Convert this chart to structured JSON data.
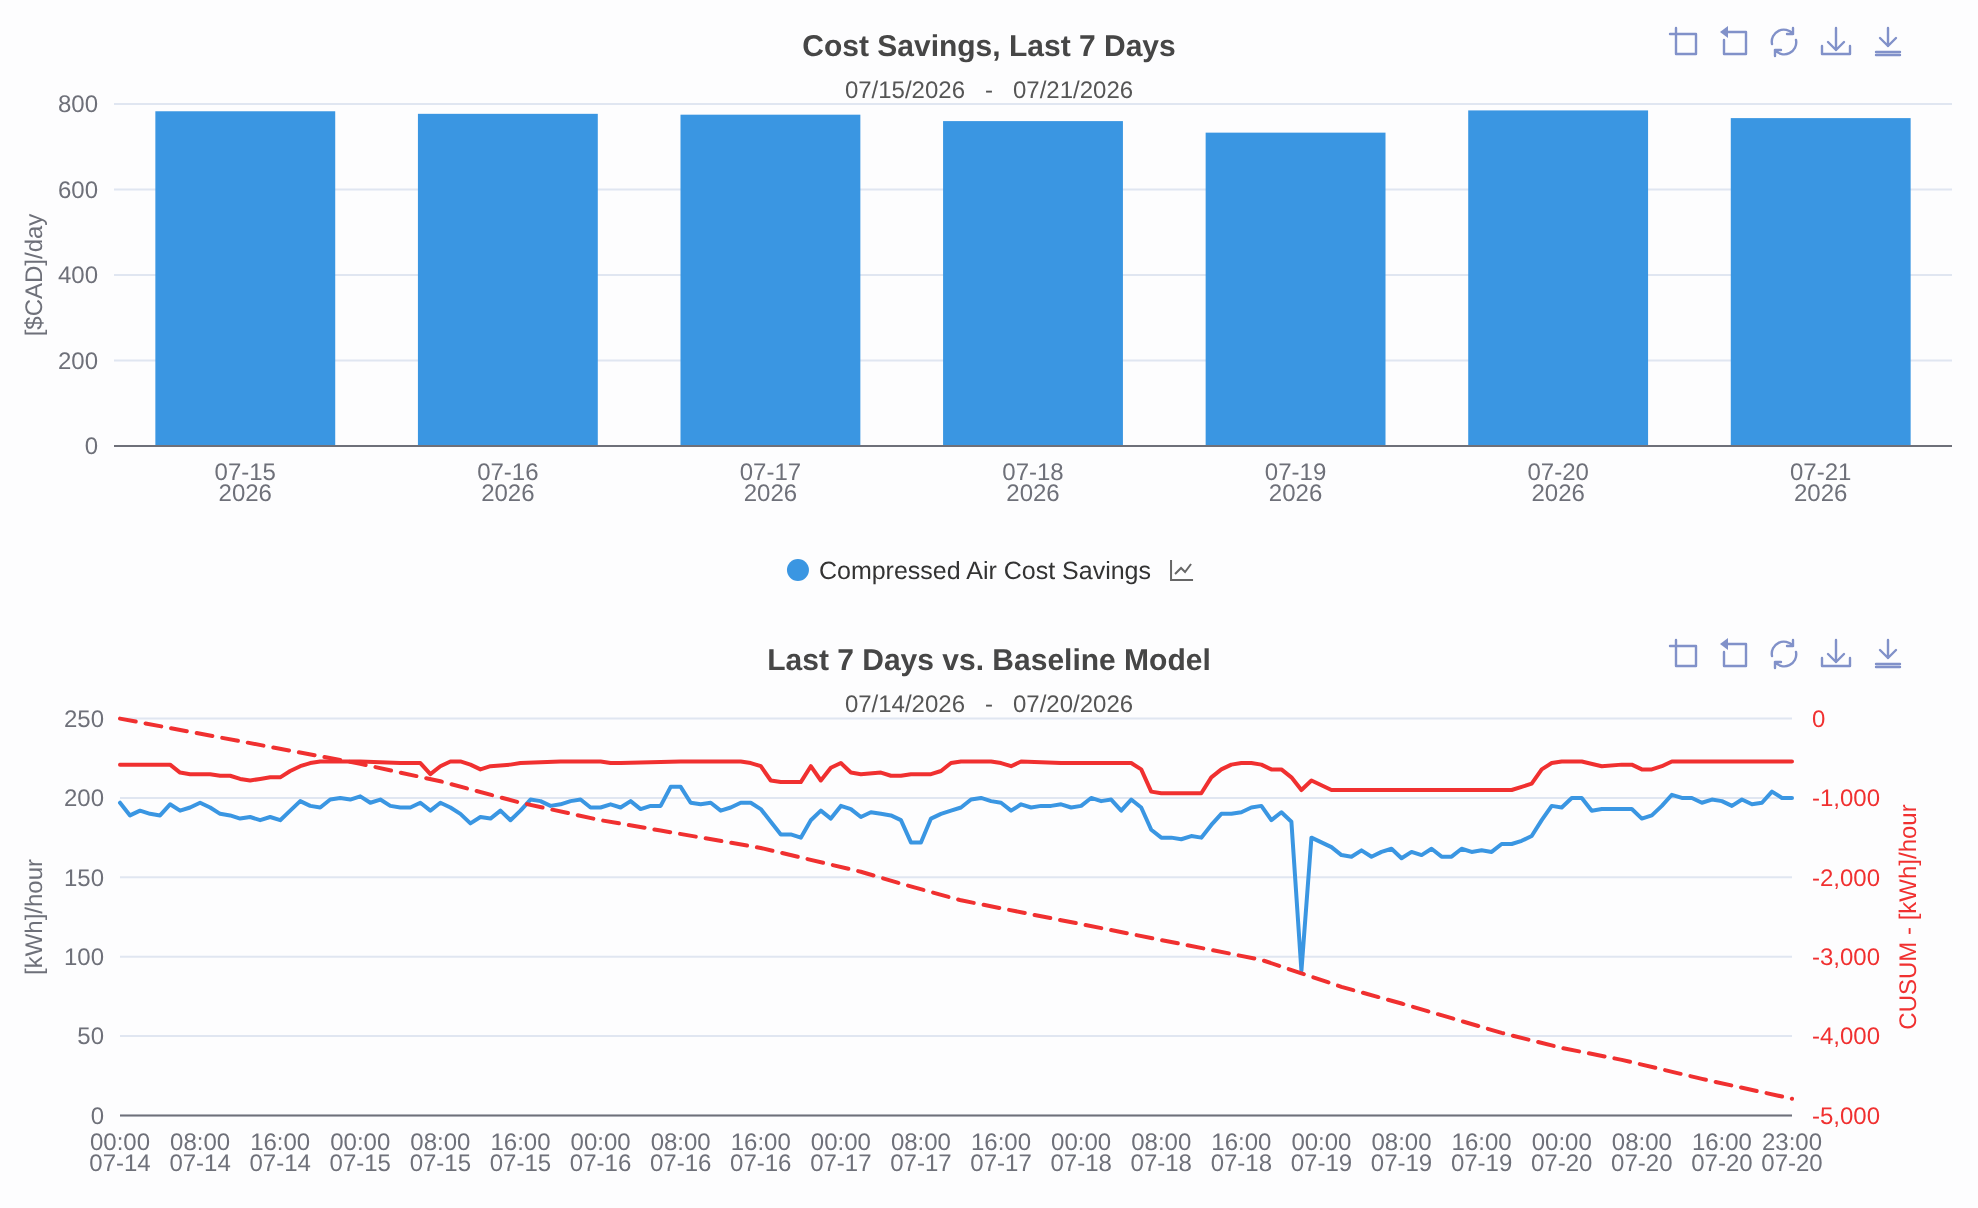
{
  "chart_data": [
    {
      "type": "bar",
      "title": "Cost Savings, Last 7 Days",
      "subtitle": "07/15/2026   -   07/21/2026",
      "categories": [
        "07-15\n2026",
        "07-16\n2026",
        "07-17\n2026",
        "07-18\n2026",
        "07-19\n2026",
        "07-20\n2026",
        "07-21\n2026"
      ],
      "ylabel": "[$CAD]/day",
      "series": [
        {
          "name": "Compressed Air Cost Savings",
          "color": "#3a96e2",
          "values": [
            783,
            777,
            775,
            760,
            733,
            785,
            767
          ]
        }
      ],
      "ylim": [
        0,
        800
      ],
      "yticks": [
        0,
        200,
        400,
        600,
        800
      ],
      "grid": "y",
      "legend": "bottom"
    },
    {
      "type": "line",
      "title": "Last 7 Days vs. Baseline Model",
      "subtitle": "07/14/2026   -   07/20/2026",
      "ylabel": "[kWh]/hour",
      "y2label": "CUSUM - [kWh]/hour",
      "x": [
        "2026-07-14T00:00",
        "2026-07-14T01:00",
        "2026-07-14T02:00",
        "2026-07-14T03:00",
        "2026-07-14T04:00",
        "2026-07-14T05:00",
        "2026-07-14T06:00",
        "2026-07-14T07:00",
        "2026-07-14T08:00",
        "2026-07-14T09:00",
        "2026-07-14T10:00",
        "2026-07-14T11:00",
        "2026-07-14T12:00",
        "2026-07-14T13:00",
        "2026-07-14T14:00",
        "2026-07-14T15:00",
        "2026-07-14T16:00",
        "2026-07-14T17:00",
        "2026-07-14T18:00",
        "2026-07-14T19:00",
        "2026-07-14T20:00",
        "2026-07-14T21:00",
        "2026-07-14T22:00",
        "2026-07-14T23:00",
        "2026-07-15T00:00",
        "2026-07-15T01:00",
        "2026-07-15T02:00",
        "2026-07-15T03:00",
        "2026-07-15T04:00",
        "2026-07-15T05:00",
        "2026-07-15T06:00",
        "2026-07-15T07:00",
        "2026-07-15T08:00",
        "2026-07-15T09:00",
        "2026-07-15T10:00",
        "2026-07-15T11:00",
        "2026-07-15T12:00",
        "2026-07-15T13:00",
        "2026-07-15T14:00",
        "2026-07-15T15:00",
        "2026-07-15T16:00",
        "2026-07-15T17:00",
        "2026-07-15T18:00",
        "2026-07-15T19:00",
        "2026-07-15T20:00",
        "2026-07-15T21:00",
        "2026-07-15T22:00",
        "2026-07-15T23:00",
        "2026-07-16T00:00",
        "2026-07-16T01:00",
        "2026-07-16T02:00",
        "2026-07-16T03:00",
        "2026-07-16T04:00",
        "2026-07-16T05:00",
        "2026-07-16T06:00",
        "2026-07-16T07:00",
        "2026-07-16T08:00",
        "2026-07-16T09:00",
        "2026-07-16T10:00",
        "2026-07-16T11:00",
        "2026-07-16T12:00",
        "2026-07-16T13:00",
        "2026-07-16T14:00",
        "2026-07-16T15:00",
        "2026-07-16T16:00",
        "2026-07-16T17:00",
        "2026-07-16T18:00",
        "2026-07-16T19:00",
        "2026-07-16T20:00",
        "2026-07-16T21:00",
        "2026-07-16T22:00",
        "2026-07-16T23:00",
        "2026-07-17T00:00",
        "2026-07-17T01:00",
        "2026-07-17T02:00",
        "2026-07-17T03:00",
        "2026-07-17T04:00",
        "2026-07-17T05:00",
        "2026-07-17T06:00",
        "2026-07-17T07:00",
        "2026-07-17T08:00",
        "2026-07-17T09:00",
        "2026-07-17T10:00",
        "2026-07-17T11:00",
        "2026-07-17T12:00",
        "2026-07-17T13:00",
        "2026-07-17T14:00",
        "2026-07-17T15:00",
        "2026-07-17T16:00",
        "2026-07-17T17:00",
        "2026-07-17T18:00",
        "2026-07-17T19:00",
        "2026-07-17T20:00",
        "2026-07-17T21:00",
        "2026-07-17T22:00",
        "2026-07-17T23:00",
        "2026-07-18T00:00",
        "2026-07-18T01:00",
        "2026-07-18T02:00",
        "2026-07-18T03:00",
        "2026-07-18T04:00",
        "2026-07-18T05:00",
        "2026-07-18T06:00",
        "2026-07-18T07:00",
        "2026-07-18T08:00",
        "2026-07-18T09:00",
        "2026-07-18T10:00",
        "2026-07-18T11:00",
        "2026-07-18T12:00",
        "2026-07-18T13:00",
        "2026-07-18T14:00",
        "2026-07-18T15:00",
        "2026-07-18T16:00",
        "2026-07-18T17:00",
        "2026-07-18T18:00",
        "2026-07-18T19:00",
        "2026-07-18T20:00",
        "2026-07-18T21:00",
        "2026-07-18T22:00",
        "2026-07-18T23:00",
        "2026-07-19T00:00",
        "2026-07-19T01:00",
        "2026-07-19T02:00",
        "2026-07-19T03:00",
        "2026-07-19T04:00",
        "2026-07-19T05:00",
        "2026-07-19T06:00",
        "2026-07-19T07:00",
        "2026-07-19T08:00",
        "2026-07-19T09:00",
        "2026-07-19T10:00",
        "2026-07-19T11:00",
        "2026-07-19T12:00",
        "2026-07-19T13:00",
        "2026-07-19T14:00",
        "2026-07-19T15:00",
        "2026-07-19T16:00",
        "2026-07-19T17:00",
        "2026-07-19T18:00",
        "2026-07-19T19:00",
        "2026-07-19T20:00",
        "2026-07-19T21:00",
        "2026-07-19T22:00",
        "2026-07-19T23:00",
        "2026-07-20T00:00",
        "2026-07-20T01:00",
        "2026-07-20T02:00",
        "2026-07-20T03:00",
        "2026-07-20T04:00",
        "2026-07-20T05:00",
        "2026-07-20T06:00",
        "2026-07-20T07:00",
        "2026-07-20T08:00",
        "2026-07-20T09:00",
        "2026-07-20T10:00",
        "2026-07-20T11:00",
        "2026-07-20T12:00",
        "2026-07-20T13:00",
        "2026-07-20T14:00",
        "2026-07-20T15:00",
        "2026-07-20T16:00",
        "2026-07-20T17:00",
        "2026-07-20T18:00",
        "2026-07-20T19:00",
        "2026-07-20T20:00",
        "2026-07-20T21:00",
        "2026-07-20T22:00",
        "2026-07-20T23:00"
      ],
      "xlim": [
        "2026-07-14T00:00",
        "2026-07-20T23:00"
      ],
      "xticks": [
        {
          "value": "2026-07-14T00:00",
          "label": "00:00\n07-14"
        },
        {
          "value": "2026-07-14T08:00",
          "label": "08:00\n07-14"
        },
        {
          "value": "2026-07-14T16:00",
          "label": "16:00\n07-14"
        },
        {
          "value": "2026-07-15T00:00",
          "label": "00:00\n07-15"
        },
        {
          "value": "2026-07-15T08:00",
          "label": "08:00\n07-15"
        },
        {
          "value": "2026-07-15T16:00",
          "label": "16:00\n07-15"
        },
        {
          "value": "2026-07-16T00:00",
          "label": "00:00\n07-16"
        },
        {
          "value": "2026-07-16T08:00",
          "label": "08:00\n07-16"
        },
        {
          "value": "2026-07-16T16:00",
          "label": "16:00\n07-16"
        },
        {
          "value": "2026-07-17T00:00",
          "label": "00:00\n07-17"
        },
        {
          "value": "2026-07-17T08:00",
          "label": "08:00\n07-17"
        },
        {
          "value": "2026-07-17T16:00",
          "label": "16:00\n07-17"
        },
        {
          "value": "2026-07-18T00:00",
          "label": "00:00\n07-18"
        },
        {
          "value": "2026-07-18T08:00",
          "label": "08:00\n07-18"
        },
        {
          "value": "2026-07-18T16:00",
          "label": "16:00\n07-18"
        },
        {
          "value": "2026-07-19T00:00",
          "label": "00:00\n07-19"
        },
        {
          "value": "2026-07-19T08:00",
          "label": "08:00\n07-19"
        },
        {
          "value": "2026-07-19T16:00",
          "label": "16:00\n07-19"
        },
        {
          "value": "2026-07-20T00:00",
          "label": "00:00\n07-20"
        },
        {
          "value": "2026-07-20T08:00",
          "label": "08:00\n07-20"
        },
        {
          "value": "2026-07-20T16:00",
          "label": "16:00\n07-20"
        },
        {
          "value": "2026-07-20T23:00",
          "label": "23:00\n07-20"
        }
      ],
      "ylim": [
        0,
        250
      ],
      "yticks": [
        0,
        50,
        100,
        150,
        200,
        250
      ],
      "y2lim": [
        -5000,
        0
      ],
      "y2ticks": [
        {
          "value": -5000,
          "label": "-5,000"
        },
        {
          "value": -4000,
          "label": "-4,000"
        },
        {
          "value": -3000,
          "label": "-3,000"
        },
        {
          "value": -2000,
          "label": "-2,000"
        },
        {
          "value": -1000,
          "label": "-1,000"
        },
        0
      ],
      "grid": "y",
      "series": [
        {
          "color": "#3a96e2",
          "values": [
            197,
            189,
            192,
            190,
            189,
            196,
            192,
            194,
            197,
            194,
            190,
            189,
            187,
            188,
            186,
            188,
            186,
            192,
            198,
            195,
            194,
            199,
            200,
            199,
            201,
            197,
            199,
            195,
            194,
            194,
            197,
            192,
            197,
            194,
            190,
            184,
            188,
            187,
            192,
            186,
            192,
            199,
            198,
            195,
            196,
            198,
            199,
            194,
            194,
            196,
            194,
            198,
            193,
            195,
            195,
            207,
            207,
            197,
            196,
            197,
            192,
            194,
            197,
            197,
            193,
            185,
            177,
            177,
            175,
            186,
            192,
            187,
            195,
            193,
            188,
            191,
            190,
            189,
            186,
            172,
            172,
            187,
            190,
            192,
            194,
            199,
            200,
            198,
            197,
            192,
            196,
            194,
            195,
            195,
            196,
            194,
            195,
            200,
            198,
            199,
            192,
            199,
            194,
            180,
            175,
            175,
            174,
            176,
            175,
            183,
            190,
            190,
            191,
            194,
            195,
            186,
            191,
            185,
            91,
            175,
            172,
            169,
            164,
            163,
            167,
            163,
            166,
            168,
            162,
            166,
            164,
            168,
            163,
            163,
            168,
            166,
            167,
            166,
            171,
            171,
            173,
            176,
            186,
            195,
            194,
            200,
            200,
            192,
            193,
            193,
            193,
            193,
            187,
            189,
            195,
            202,
            200,
            200,
            197,
            199,
            198,
            195,
            199,
            196,
            197,
            204,
            200,
            200
          ]
        },
        {
          "color": "#f03030",
          "x": [
            "2026-07-14T00:00",
            "2026-07-14T05:00",
            "2026-07-14T06:00",
            "2026-07-14T07:00",
            "2026-07-14T09:00",
            "2026-07-14T10:00",
            "2026-07-14T11:00",
            "2026-07-14T12:00",
            "2026-07-14T13:00",
            "2026-07-14T14:00",
            "2026-07-14T15:00",
            "2026-07-14T16:00",
            "2026-07-14T17:00",
            "2026-07-14T18:00",
            "2026-07-14T19:00",
            "2026-07-14T20:00",
            "2026-07-15T00:00",
            "2026-07-15T04:00",
            "2026-07-15T06:00",
            "2026-07-15T07:00",
            "2026-07-15T08:00",
            "2026-07-15T09:00",
            "2026-07-15T10:00",
            "2026-07-15T11:00",
            "2026-07-15T12:00",
            "2026-07-15T13:00",
            "2026-07-15T15:00",
            "2026-07-15T16:00",
            "2026-07-15T20:00",
            "2026-07-16T00:00",
            "2026-07-16T01:00",
            "2026-07-16T02:00",
            "2026-07-16T08:00",
            "2026-07-16T14:00",
            "2026-07-16T15:00",
            "2026-07-16T16:00",
            "2026-07-16T17:00",
            "2026-07-16T18:00",
            "2026-07-16T20:00",
            "2026-07-16T21:00",
            "2026-07-16T22:00",
            "2026-07-16T23:00",
            "2026-07-17T00:00",
            "2026-07-17T01:00",
            "2026-07-17T02:00",
            "2026-07-17T04:00",
            "2026-07-17T05:00",
            "2026-07-17T06:00",
            "2026-07-17T07:00",
            "2026-07-17T09:00",
            "2026-07-17T10:00",
            "2026-07-17T11:00",
            "2026-07-17T12:00",
            "2026-07-17T15:00",
            "2026-07-17T16:00",
            "2026-07-17T17:00",
            "2026-07-17T18:00",
            "2026-07-17T22:00",
            "2026-07-18T02:00",
            "2026-07-18T04:00",
            "2026-07-18T05:00",
            "2026-07-18T06:00",
            "2026-07-18T07:00",
            "2026-07-18T08:00",
            "2026-07-18T12:00",
            "2026-07-18T13:00",
            "2026-07-18T14:00",
            "2026-07-18T15:00",
            "2026-07-18T16:00",
            "2026-07-18T17:00",
            "2026-07-18T18:00",
            "2026-07-18T19:00",
            "2026-07-18T20:00",
            "2026-07-18T21:00",
            "2026-07-18T22:00",
            "2026-07-18T23:00",
            "2026-07-19T00:00",
            "2026-07-19T01:00",
            "2026-07-19T19:00",
            "2026-07-19T20:00",
            "2026-07-19T21:00",
            "2026-07-19T22:00",
            "2026-07-19T23:00",
            "2026-07-20T00:00",
            "2026-07-20T02:00",
            "2026-07-20T04:00",
            "2026-07-20T06:00",
            "2026-07-20T07:00",
            "2026-07-20T08:00",
            "2026-07-20T09:00",
            "2026-07-20T10:00",
            "2026-07-20T11:00",
            "2026-07-20T14:00",
            "2026-07-20T23:00"
          ],
          "values": [
            221,
            221,
            216,
            215,
            215,
            214,
            214,
            212,
            211,
            212,
            213,
            213,
            217,
            220,
            222,
            223,
            223,
            222,
            222,
            215,
            220,
            223,
            223,
            221,
            218,
            220,
            221,
            222,
            223,
            223,
            222,
            222,
            223,
            223,
            222,
            220,
            211,
            210,
            210,
            220,
            211,
            219,
            222,
            216,
            215,
            216,
            214,
            214,
            215,
            215,
            217,
            222,
            223,
            223,
            222,
            220,
            223,
            222,
            222,
            222,
            222,
            218,
            204,
            203,
            203,
            213,
            218,
            221,
            222,
            222,
            221,
            218,
            218,
            213,
            205,
            211,
            208,
            205,
            205,
            207,
            209,
            218,
            222,
            223,
            223,
            220,
            221,
            221,
            218,
            218,
            220,
            223,
            223,
            223
          ]
        },
        {
          "color": "#f03030",
          "axis": "y2",
          "line_style": "dashed",
          "x": [
            "2026-07-14T00:00",
            "2026-07-15T00:00",
            "2026-07-15T08:00",
            "2026-07-15T16:00",
            "2026-07-16T00:00",
            "2026-07-16T06:00",
            "2026-07-16T16:00",
            "2026-07-17T02:00",
            "2026-07-17T06:00",
            "2026-07-17T12:00",
            "2026-07-17T22:00",
            "2026-07-18T08:00",
            "2026-07-18T18:00",
            "2026-07-18T22:00",
            "2026-07-19T02:00",
            "2026-07-19T08:00",
            "2026-07-19T18:00",
            "2026-07-20T00:00",
            "2026-07-20T06:00",
            "2026-07-20T14:00",
            "2026-07-20T23:00"
          ],
          "values": [
            0,
            -570,
            -790,
            -1060,
            -1280,
            -1410,
            -1630,
            -1930,
            -2080,
            -2290,
            -2540,
            -2790,
            -3040,
            -3210,
            -3380,
            -3590,
            -3960,
            -4150,
            -4300,
            -4540,
            -4790
          ]
        }
      ]
    }
  ]
}
